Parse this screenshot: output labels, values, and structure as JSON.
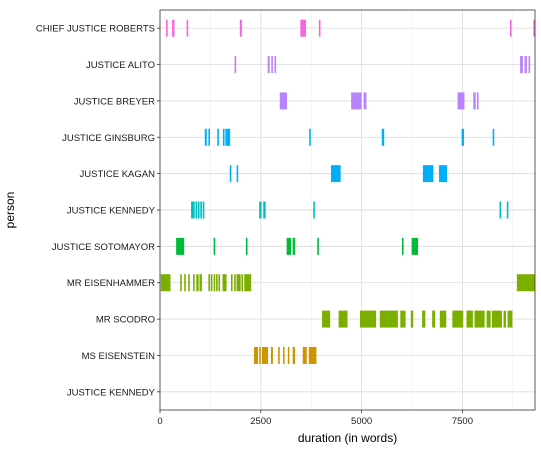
{
  "chart_data": {
    "type": "timeline",
    "title": "",
    "xlabel": "duration (in words)",
    "ylabel": "person",
    "xlim": [
      0,
      9300
    ],
    "x_ticks": [
      0,
      2500,
      5000,
      7500
    ],
    "x_tick_labels": [
      "0",
      "2500",
      "5000",
      "7500"
    ],
    "grid": true,
    "legend": "none",
    "categories": [
      "CHIEF JUSTICE ROBERTS",
      "JUSTICE ALITO",
      "JUSTICE BREYER",
      "JUSTICE GINSBURG",
      "JUSTICE KAGAN",
      "JUSTICE KENNEDY",
      "JUSTICE SOTOMAYOR",
      "MR EISENHAMMER",
      "MR SCODRO",
      "MS EISENSTEIN",
      "JUSTICE KENNEDY"
    ],
    "series": [
      {
        "person": "CHIEF JUSTICE ROBERTS",
        "color": "#F564E3",
        "segments": [
          [
            150,
            190
          ],
          [
            300,
            360
          ],
          [
            660,
            700
          ],
          [
            1980,
            2030
          ],
          [
            3480,
            3620
          ],
          [
            3940,
            3980
          ],
          [
            8680,
            8720
          ],
          [
            9260,
            9300
          ]
        ]
      },
      {
        "person": "JUSTICE ALITO",
        "color": "#B983FF",
        "segments": [
          [
            1850,
            1890
          ],
          [
            2670,
            2720
          ],
          [
            2760,
            2800
          ],
          [
            2840,
            2880
          ],
          [
            8930,
            9000
          ],
          [
            9040,
            9100
          ],
          [
            9140,
            9180
          ]
        ]
      },
      {
        "person": "JUSTICE BREYER",
        "color": "#B983FF",
        "segments": [
          [
            2970,
            3150
          ],
          [
            4740,
            5000
          ],
          [
            5050,
            5120
          ],
          [
            7380,
            7550
          ],
          [
            7770,
            7830
          ],
          [
            7860,
            7900
          ]
        ]
      },
      {
        "person": "JUSTICE GINSBURG",
        "color": "#00B0F6",
        "segments": [
          [
            1110,
            1160
          ],
          [
            1200,
            1240
          ],
          [
            1420,
            1460
          ],
          [
            1560,
            1600
          ],
          [
            1620,
            1740
          ],
          [
            3700,
            3740
          ],
          [
            5500,
            5560
          ],
          [
            7480,
            7540
          ],
          [
            8250,
            8290
          ]
        ]
      },
      {
        "person": "JUSTICE KAGAN",
        "color": "#00B0F6",
        "segments": [
          [
            1730,
            1770
          ],
          [
            1900,
            1940
          ],
          [
            4240,
            4480
          ],
          [
            6520,
            6780
          ],
          [
            6920,
            7120
          ]
        ]
      },
      {
        "person": "JUSTICE KENNEDY",
        "color": "#00BFC4",
        "segments": [
          [
            770,
            860
          ],
          [
            880,
            920
          ],
          [
            940,
            980
          ],
          [
            1000,
            1040
          ],
          [
            1060,
            1100
          ],
          [
            2460,
            2520
          ],
          [
            2560,
            2620
          ],
          [
            3800,
            3840
          ],
          [
            8420,
            8460
          ],
          [
            8600,
            8640
          ]
        ]
      },
      {
        "person": "JUSTICE SOTOMAYOR",
        "color": "#00BA38",
        "segments": [
          [
            400,
            600
          ],
          [
            1330,
            1370
          ],
          [
            2130,
            2170
          ],
          [
            3140,
            3250
          ],
          [
            3290,
            3350
          ],
          [
            3900,
            3940
          ],
          [
            6000,
            6040
          ],
          [
            6240,
            6400
          ]
        ]
      },
      {
        "person": "MR EISENHAMMER",
        "color": "#7CAE00",
        "segments": [
          [
            20,
            260
          ],
          [
            500,
            540
          ],
          [
            600,
            640
          ],
          [
            700,
            740
          ],
          [
            820,
            860
          ],
          [
            900,
            960
          ],
          [
            980,
            1040
          ],
          [
            1200,
            1240
          ],
          [
            1260,
            1300
          ],
          [
            1330,
            1370
          ],
          [
            1390,
            1430
          ],
          [
            1450,
            1490
          ],
          [
            1550,
            1650
          ],
          [
            1760,
            1800
          ],
          [
            1840,
            1880
          ],
          [
            1900,
            2000
          ],
          [
            2020,
            2060
          ],
          [
            2090,
            2260
          ],
          [
            8850,
            9300
          ]
        ]
      },
      {
        "person": "MR SCODRO",
        "color": "#7CAE00",
        "segments": [
          [
            4020,
            4220
          ],
          [
            4430,
            4650
          ],
          [
            4960,
            5360
          ],
          [
            5450,
            5900
          ],
          [
            5960,
            6090
          ],
          [
            6220,
            6280
          ],
          [
            6500,
            6580
          ],
          [
            6750,
            6820
          ],
          [
            6940,
            7100
          ],
          [
            7250,
            7520
          ],
          [
            7600,
            7760
          ],
          [
            7800,
            8050
          ],
          [
            8100,
            8200
          ],
          [
            8230,
            8480
          ],
          [
            8520,
            8580
          ],
          [
            8620,
            8740
          ]
        ]
      },
      {
        "person": "MS EISENSTEIN",
        "color": "#CD9600",
        "segments": [
          [
            2330,
            2430
          ],
          [
            2460,
            2500
          ],
          [
            2530,
            2680
          ],
          [
            2750,
            2800
          ],
          [
            2930,
            2970
          ],
          [
            3050,
            3090
          ],
          [
            3170,
            3210
          ],
          [
            3290,
            3350
          ],
          [
            3540,
            3640
          ],
          [
            3690,
            3880
          ]
        ]
      },
      {
        "person": "JUSTICE KENNEDY",
        "color": "#F8766D",
        "segments": []
      }
    ]
  }
}
